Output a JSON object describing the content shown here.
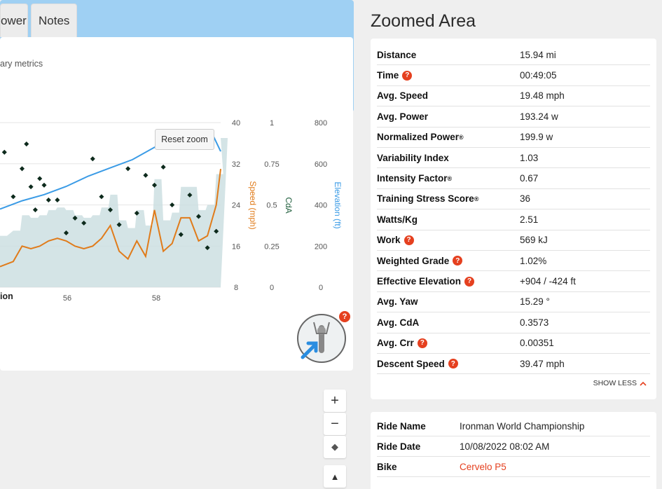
{
  "tabs": [
    {
      "label": "ower"
    },
    {
      "label": "Notes"
    }
  ],
  "chart": {
    "subtitle": "ary metrics",
    "bottom_label": "ion",
    "reset_zoom": "Reset zoom",
    "y_axes": [
      {
        "title": "Speed (mph)",
        "ticks": [
          "40",
          "32",
          "24",
          "16",
          "8"
        ],
        "color": "#e07b1a"
      },
      {
        "title": "CdA",
        "ticks": [
          "1",
          "0.75",
          "0.5",
          "0.25",
          "0"
        ],
        "color": "#1f5e3c"
      },
      {
        "title": "Elevation (ft)",
        "ticks": [
          "800",
          "600",
          "400",
          "200",
          "0"
        ],
        "color": "#3a9be6"
      }
    ],
    "x_ticks": [
      "56",
      "58"
    ]
  },
  "chart_data": {
    "type": "line",
    "x_unit": "time (min)",
    "xlim": [
      54.5,
      59.5
    ],
    "series": [
      {
        "name": "Speed (mph)",
        "color": "#e07b1a",
        "x": [
          54.5,
          54.8,
          55.0,
          55.2,
          55.4,
          55.6,
          55.8,
          56.0,
          56.2,
          56.4,
          56.6,
          56.8,
          57.0,
          57.2,
          57.4,
          57.6,
          57.8,
          58.0,
          58.2,
          58.4,
          58.6,
          58.8,
          59.0,
          59.2,
          59.4,
          59.5
        ],
        "values": [
          12,
          13,
          16,
          15.5,
          16,
          17,
          17.5,
          17,
          16,
          15.5,
          16,
          17.5,
          20,
          15,
          13.5,
          17,
          14,
          23,
          15,
          16.5,
          21.5,
          21.5,
          17,
          18,
          24,
          31
        ]
      },
      {
        "name": "CdA",
        "color": "#1f5e3c",
        "kind": "scatter",
        "x": [
          54.6,
          54.8,
          55.0,
          55.1,
          55.2,
          55.3,
          55.4,
          55.5,
          55.6,
          55.8,
          56.0,
          56.2,
          56.4,
          56.6,
          56.8,
          57.0,
          57.2,
          57.4,
          57.6,
          57.8,
          58.0,
          58.2,
          58.4,
          58.6,
          58.8,
          59.0,
          59.2,
          59.4
        ],
        "values": [
          0.82,
          0.55,
          0.72,
          0.87,
          0.61,
          0.47,
          0.66,
          0.62,
          0.53,
          0.53,
          0.33,
          0.42,
          0.39,
          0.78,
          0.55,
          0.47,
          0.38,
          0.72,
          0.45,
          0.68,
          0.62,
          0.73,
          0.5,
          0.32,
          0.56,
          0.43,
          0.24,
          0.34
        ]
      },
      {
        "name": "Elevation (ft)",
        "color": "#3a9be6",
        "x": [
          54.5,
          55.0,
          55.5,
          56.0,
          56.5,
          57.0,
          57.5,
          58.0,
          58.5,
          59.0,
          59.3,
          59.5
        ],
        "values": [
          380,
          420,
          450,
          490,
          540,
          580,
          620,
          680,
          720,
          760,
          750,
          660
        ]
      }
    ],
    "y_axes": [
      {
        "name": "Speed (mph)",
        "ylim": [
          8,
          40
        ]
      },
      {
        "name": "CdA",
        "ylim": [
          0,
          1
        ]
      },
      {
        "name": "Elevation (ft)",
        "ylim": [
          0,
          800
        ]
      }
    ]
  },
  "bike_badge": {
    "icon": "cyclist-aero-icon",
    "help": "?"
  },
  "map": {
    "zoom_in": "+",
    "zoom_out": "−",
    "compass": "◆",
    "terrain": "▲"
  },
  "zoomed": {
    "title": "Zoomed Area",
    "metrics": [
      {
        "label": "Distance",
        "value": "15.94 mi",
        "help": false,
        "sup": ""
      },
      {
        "label": "Time",
        "value": "00:49:05",
        "help": true,
        "sup": ""
      },
      {
        "label": "Avg. Speed",
        "value": "19.48 mph",
        "help": false,
        "sup": ""
      },
      {
        "label": "Avg. Power",
        "value": "193.24 w",
        "help": false,
        "sup": ""
      },
      {
        "label": "Normalized Power",
        "value": "199.9 w",
        "help": false,
        "sup": "®"
      },
      {
        "label": "Variability Index",
        "value": "1.03",
        "help": false,
        "sup": ""
      },
      {
        "label": "Intensity Factor",
        "value": "0.67",
        "help": false,
        "sup": "®"
      },
      {
        "label": "Training Stress Score",
        "value": "36",
        "help": false,
        "sup": "®"
      },
      {
        "label": "Watts/Kg",
        "value": "2.51",
        "help": false,
        "sup": ""
      },
      {
        "label": "Work",
        "value": "569 kJ",
        "help": true,
        "sup": ""
      },
      {
        "label": "Weighted Grade",
        "value": "1.02%",
        "help": true,
        "sup": ""
      },
      {
        "label": "Effective Elevation",
        "value": "+904 / -424 ft",
        "help": true,
        "sup": ""
      },
      {
        "label": "Avg. Yaw",
        "value": "15.29 °",
        "help": false,
        "sup": ""
      },
      {
        "label": "Avg. CdA",
        "value": "0.3573",
        "help": false,
        "sup": ""
      },
      {
        "label": "Avg. Crr",
        "value": "0.00351",
        "help": true,
        "sup": ""
      },
      {
        "label": "Descent Speed",
        "value": "39.47 mph",
        "help": true,
        "sup": ""
      }
    ],
    "show_less": "SHOW LESS"
  },
  "ride": {
    "rows": [
      {
        "label": "Ride Name",
        "value": "Ironman World Championship",
        "link": false
      },
      {
        "label": "Ride Date",
        "value": "10/08/2022 08:02 AM",
        "link": false
      },
      {
        "label": "Bike",
        "value": "Cervelo P5",
        "link": true
      }
    ]
  }
}
